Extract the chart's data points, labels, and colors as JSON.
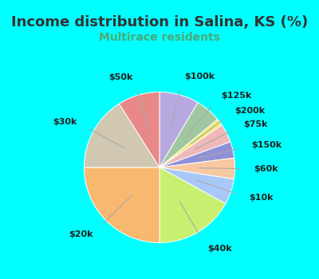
{
  "title": "Income distribution in Salina, KS (%)",
  "subtitle": "Multirace residents",
  "title_color": "#333333",
  "subtitle_color": "#4aaa77",
  "fig_bg_color": "#00ffff",
  "chart_bg_color": "#e0f5ee",
  "slices": [
    {
      "label": "$100k",
      "value": 8.5,
      "color": "#b8a8e0"
    },
    {
      "label": "$125k",
      "value": 5.5,
      "color": "#a0c8a0"
    },
    {
      "label": "$200k",
      "value": 1.5,
      "color": "#f0e870"
    },
    {
      "label": "$75k",
      "value": 4.0,
      "color": "#f0b8b8"
    },
    {
      "label": "$150k",
      "value": 3.5,
      "color": "#9090d8"
    },
    {
      "label": "$60k",
      "value": 4.5,
      "color": "#f8c8a0"
    },
    {
      "label": "$10k",
      "value": 5.5,
      "color": "#a8c8f8"
    },
    {
      "label": "$40k",
      "value": 17.0,
      "color": "#c8f070"
    },
    {
      "label": "$20k",
      "value": 25.0,
      "color": "#f8b870"
    },
    {
      "label": "$30k",
      "value": 16.0,
      "color": "#d0c8b0"
    },
    {
      "label": "$50k",
      "value": 9.0,
      "color": "#e88888"
    }
  ],
  "label_fontsize": 8,
  "title_fontsize": 13,
  "subtitle_fontsize": 10
}
